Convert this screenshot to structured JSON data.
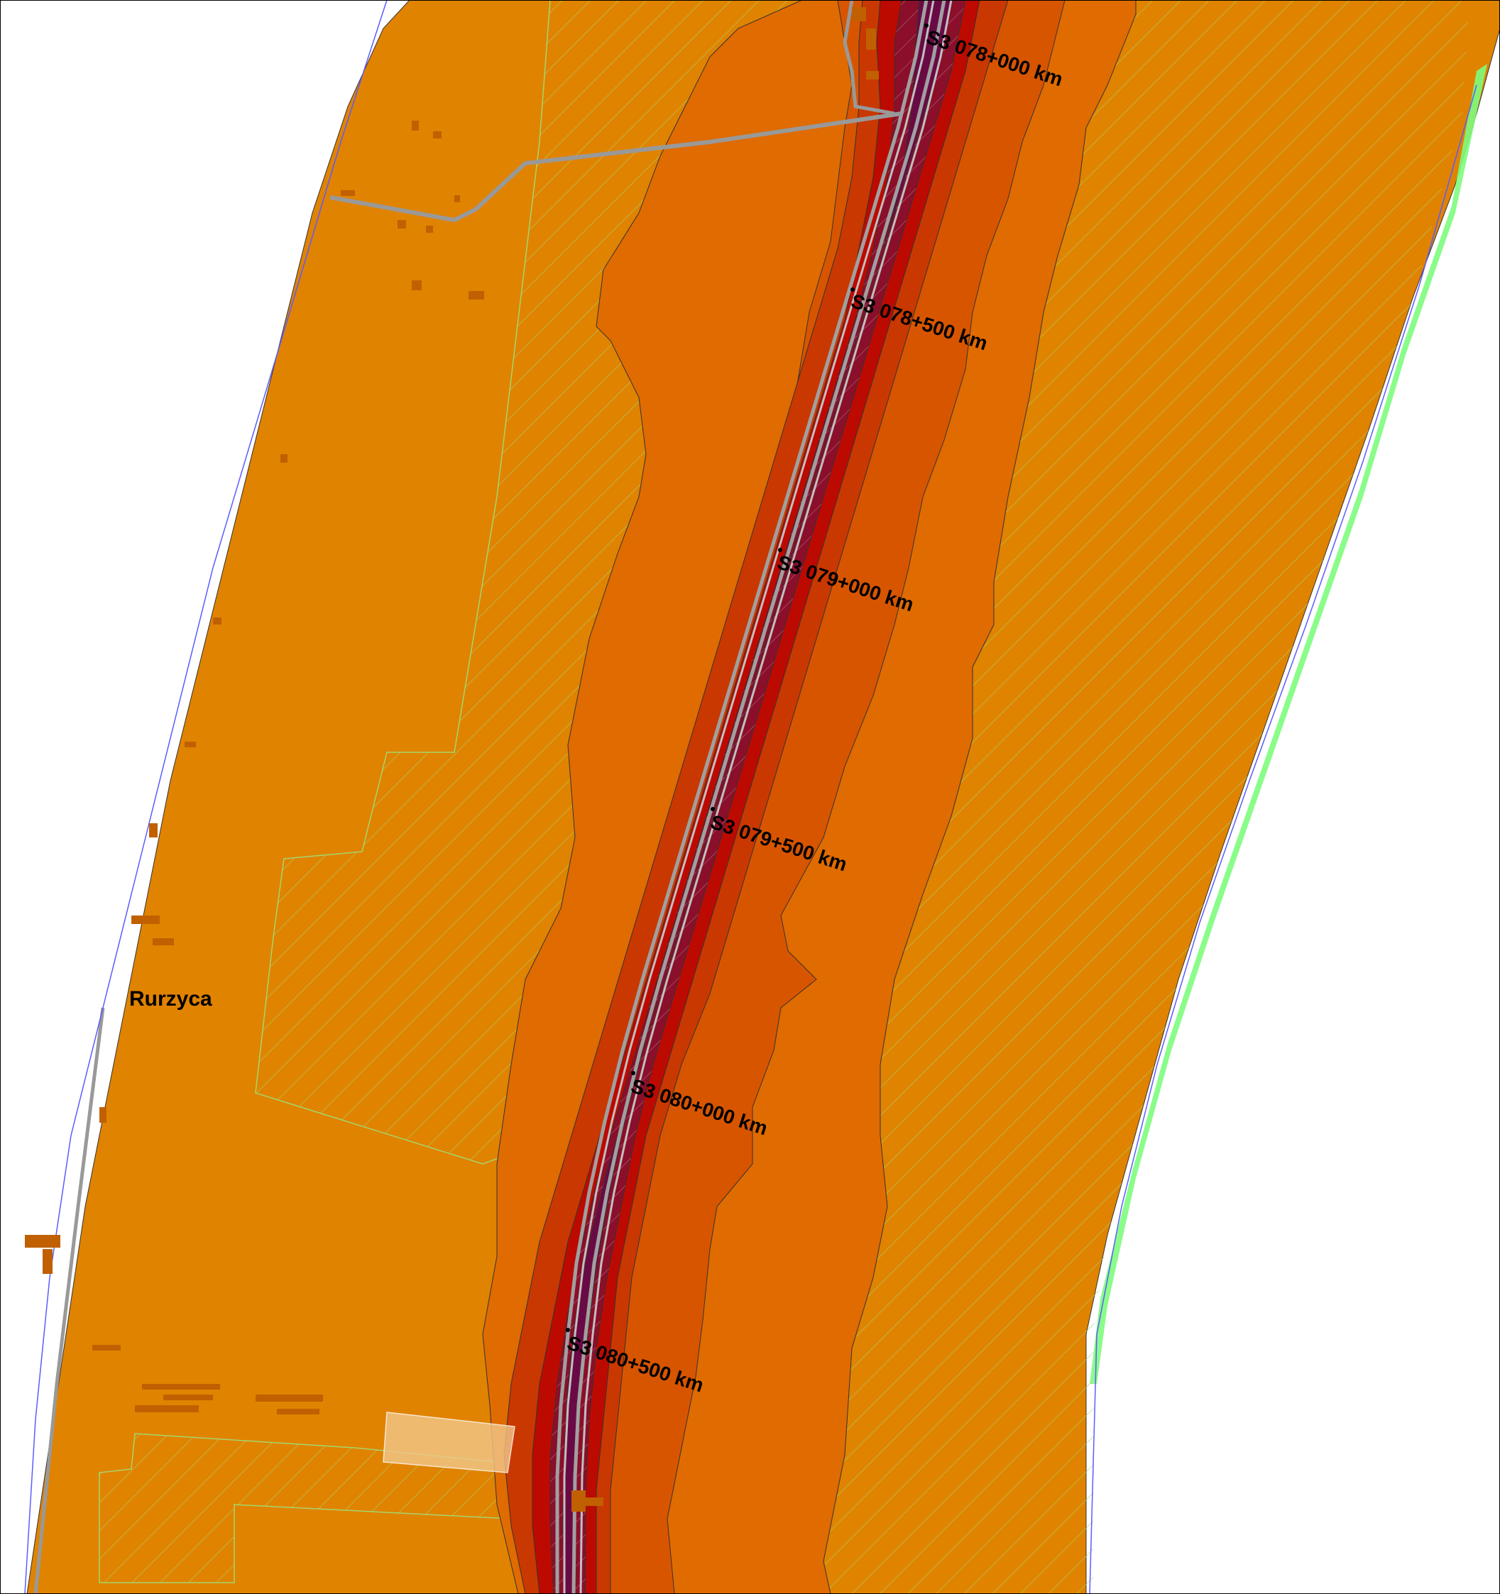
{
  "colors": {
    "background": "#ffffff",
    "zone_outer": "#e08300",
    "zone_2": "#e06b00",
    "zone_3": "#d85500",
    "zone_4": "#c93800",
    "zone_5": "#bd0a00",
    "zone_6": "#8b0f2a",
    "zone_core": "#6a0a45",
    "hatch": "#a5d66e",
    "road": "#a0a0a0",
    "boundary": "#5c5cff",
    "building": "#c06000",
    "highlight": "#f2c88c"
  },
  "road": {
    "name": "S3"
  },
  "km_markers": [
    {
      "label": "S3 078+000 km"
    },
    {
      "label": "S3 078+500 km"
    },
    {
      "label": "S3 079+000 km"
    },
    {
      "label": "S3 079+500 km"
    },
    {
      "label": "S3 080+000 km"
    },
    {
      "label": "S3 080+500 km"
    }
  ],
  "places": [
    {
      "name": "Rurzyca"
    }
  ],
  "icons": {
    "km_marker": "dot-marker-icon"
  }
}
